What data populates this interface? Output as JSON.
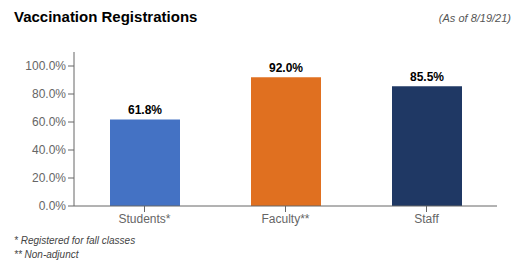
{
  "chart_data": {
    "type": "bar",
    "title": "Vaccination Registrations",
    "annotations": [
      "(As of 8/19/21)",
      "* Registered for fall classes",
      "** Non-adjunct"
    ],
    "categories": [
      "Students*",
      "Faculty**",
      "Staff"
    ],
    "values": [
      61.8,
      92.0,
      85.5
    ],
    "value_labels": [
      "61.8%",
      "92.0%",
      "85.5%"
    ],
    "colors": [
      "#4472C4",
      "#E07020",
      "#1F3864"
    ],
    "ylim": [
      0,
      110
    ],
    "yticks": [
      {
        "value": 0.0,
        "label": "0.0%"
      },
      {
        "value": 20.0,
        "label": "20.0%"
      },
      {
        "value": 40.0,
        "label": "40.0%"
      },
      {
        "value": 60.0,
        "label": "60.0%"
      },
      {
        "value": 80.0,
        "label": "80.0%"
      },
      {
        "value": 100.0,
        "label": "100.0%"
      }
    ],
    "grid": false,
    "data_labels": true
  }
}
